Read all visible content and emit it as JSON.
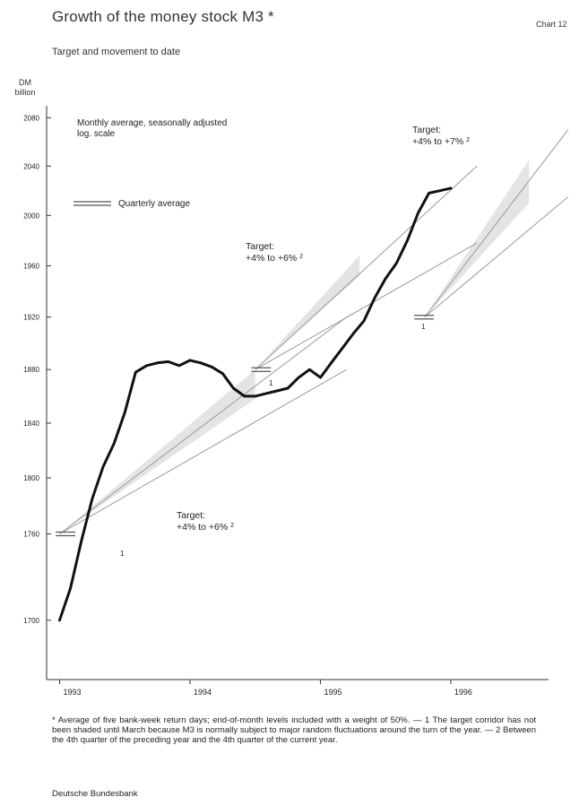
{
  "header": {
    "title": "Growth of the money stock M3 *",
    "chart_number": "Chart 12",
    "subtitle": "Target and movement to date",
    "unit_line1": "DM",
    "unit_line2": "billion"
  },
  "footer": {
    "footnotes": "* Average of five bank-week return days; end-of-month levels included with a weight of 50%. — 1 The target corridor has not been shaded until March because M3 is normally subject to major random fluctuations around the turn of the year. — 2 Between the 4th quarter of the preceding year and the 4th quarter of the current year.",
    "source": "Deutsche Bundesbank"
  },
  "chart_data": {
    "type": "line",
    "scale": "log",
    "ylim": [
      1660,
      2090
    ],
    "xlim": [
      1992.9,
      1996.75
    ],
    "y_ticks": [
      1700,
      1760,
      1800,
      1840,
      1880,
      1920,
      1960,
      2000,
      2040,
      2080
    ],
    "y_tick_labels": [
      "1700",
      "1760",
      "1800",
      "1840",
      "1880",
      "1920",
      "1960",
      "2000",
      "2040",
      "2080"
    ],
    "x_ticks": [
      1993,
      1994,
      1995,
      1996
    ],
    "x_tick_labels": [
      "1993",
      "1994",
      "1995",
      "1996"
    ],
    "series": [
      {
        "kind": "monthly",
        "x": [
          1993.0,
          1993.083,
          1993.167,
          1993.25,
          1993.333,
          1993.417,
          1993.5,
          1993.583,
          1993.667,
          1993.75,
          1993.833,
          1993.917,
          1994.0,
          1994.083,
          1994.167,
          1994.25,
          1994.333,
          1994.417,
          1994.5,
          1994.583,
          1994.667,
          1994.75,
          1994.833,
          1994.917,
          1995.0,
          1995.083,
          1995.167,
          1995.25,
          1995.333,
          1995.417,
          1995.5,
          1995.583,
          1995.667,
          1995.75,
          1995.833,
          1995.917,
          1996.0
        ],
        "y": [
          1700,
          1722,
          1755,
          1785,
          1808,
          1825,
          1848,
          1878,
          1883,
          1885,
          1886,
          1883,
          1887,
          1885,
          1882,
          1877,
          1866,
          1860,
          1860,
          1862,
          1864,
          1866,
          1874,
          1880,
          1874,
          1885,
          1896,
          1907,
          1917,
          1935,
          1950,
          1962,
          1980,
          2002,
          2018,
          2020,
          2022
        ]
      }
    ],
    "quarterly_averages": [
      {
        "x": [
          1992.97,
          1993.12
        ],
        "y": 1760
      },
      {
        "x": [
          1994.47,
          1994.62
        ],
        "y": 1880
      },
      {
        "x": [
          1995.72,
          1995.87
        ],
        "y": 1920
      }
    ],
    "target_corridors": [
      {
        "year": 1993,
        "label_line1": "Target:",
        "label_line2": "+4% to +6%",
        "footnote": "2",
        "base_x": 1993.0,
        "base_y": 1760,
        "end_x": 1994.5,
        "upper_y": 1880,
        "lower_y": 1858,
        "fan_x": 1995.2,
        "fan_upper_y": 1920,
        "fan_lower_y": 1880
      },
      {
        "year": 1994,
        "label_line1": "Target:",
        "label_line2": "+4% to +6%",
        "footnote": "2",
        "base_x": 1994.5,
        "base_y": 1880,
        "end_x": 1995.3,
        "upper_y": 1968,
        "lower_y": 1952,
        "fan_x": 1996.2,
        "fan_upper_y": 2040,
        "fan_lower_y": 1978
      },
      {
        "year": 1995,
        "label_line1": "Target:",
        "label_line2": "+4% to +7%",
        "footnote": "2",
        "base_x": 1995.8,
        "base_y": 1920,
        "end_x": 1996.6,
        "upper_y": 2045,
        "lower_y": 2010,
        "fan_x": 1996.9,
        "fan_upper_y": 2070,
        "fan_lower_y": 2015
      }
    ],
    "annotations": {
      "monthly_label": "Monthly average, seasonally adjusted",
      "log_label": "log. scale",
      "legend_quarterly": "Quarterly average",
      "footnote_marker": "1"
    }
  }
}
